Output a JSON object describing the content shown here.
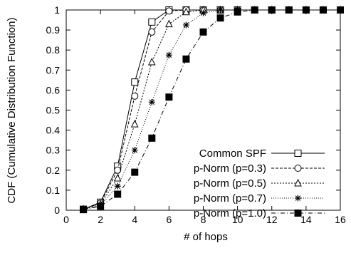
{
  "chart_data": {
    "type": "line",
    "xlabel": "# of hops",
    "ylabel": "CDF (Cumulative Distribution Function)",
    "xlim": [
      0,
      16
    ],
    "ylim": [
      0,
      1
    ],
    "xticks": [
      0,
      2,
      4,
      6,
      8,
      10,
      12,
      14,
      16
    ],
    "yticks": [
      0,
      0.1,
      0.2,
      0.3,
      0.4,
      0.5,
      0.6,
      0.7,
      0.8,
      0.9,
      1
    ],
    "ytick_labels": [
      "0",
      "0.1",
      "0.2",
      "0.3",
      "0.4",
      "0.5",
      "0.6",
      "0.7",
      "0.8",
      "0.9",
      "1"
    ],
    "grid": false,
    "legend_position": "bottom-right",
    "x": [
      1,
      2,
      3,
      4,
      5,
      6,
      7,
      8,
      9,
      10,
      11,
      12,
      13,
      14,
      15,
      16
    ],
    "series": [
      {
        "name": "Common SPF",
        "marker": "open-square",
        "line_style": "solid",
        "values": [
          0.005,
          0.04,
          0.22,
          0.64,
          0.94,
          1,
          1,
          1,
          1,
          1,
          1,
          1,
          1,
          1,
          1,
          1
        ]
      },
      {
        "name": "p-Norm (p=0.3)",
        "marker": "open-circle",
        "line_style": "dashed",
        "values": [
          0.005,
          0.035,
          0.2,
          0.57,
          0.89,
          0.995,
          1,
          1,
          1,
          1,
          1,
          1,
          1,
          1,
          1,
          1
        ]
      },
      {
        "name": "p-Norm (p=0.5)",
        "marker": "open-triangle",
        "line_style": "dotted",
        "values": [
          0.005,
          0.03,
          0.16,
          0.43,
          0.74,
          0.93,
          0.99,
          1,
          1,
          1,
          1,
          1,
          1,
          1,
          1,
          1
        ]
      },
      {
        "name": "p-Norm (p=0.7)",
        "marker": "star",
        "line_style": "fine-dotted",
        "values": [
          0.003,
          0.025,
          0.12,
          0.3,
          0.54,
          0.775,
          0.925,
          0.985,
          1,
          1,
          1,
          1,
          1,
          1,
          1,
          1
        ]
      },
      {
        "name": "p-Norm (p=1.0)",
        "marker": "filled-square",
        "line_style": "dash-dot",
        "values": [
          0.003,
          0.02,
          0.08,
          0.19,
          0.36,
          0.565,
          0.755,
          0.89,
          0.96,
          0.99,
          1,
          1,
          1,
          1,
          1,
          1
        ]
      }
    ]
  }
}
